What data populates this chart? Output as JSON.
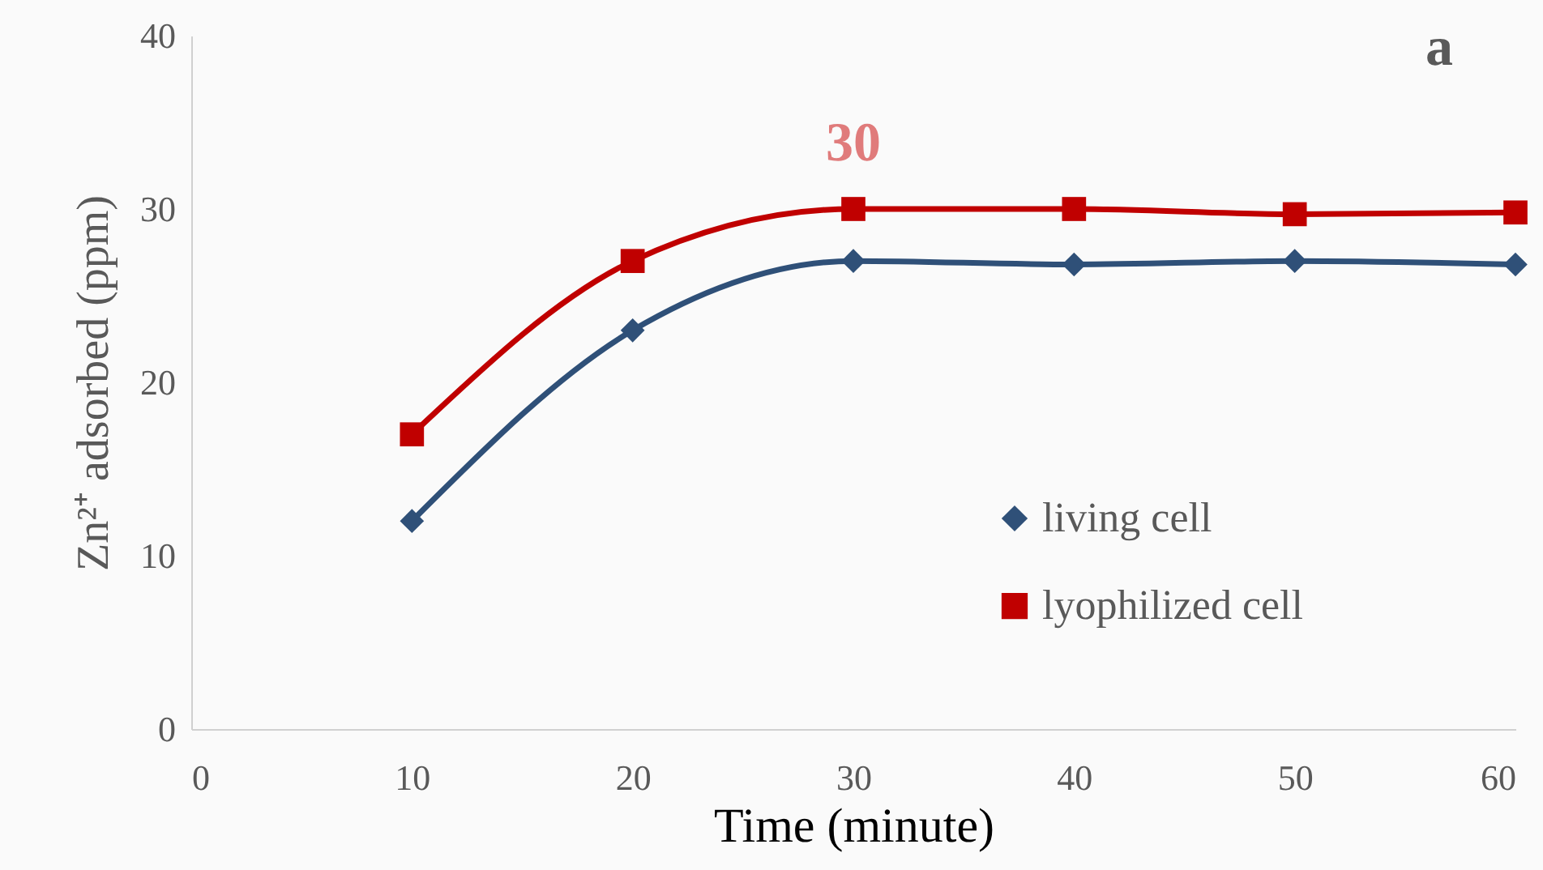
{
  "chart_data": {
    "type": "line",
    "xlabel": "Time (minute)",
    "ylabel": "Zn²⁺ adsorbed (ppm)",
    "x": [
      10,
      20,
      30,
      40,
      50,
      60
    ],
    "series": [
      {
        "name": "living cell",
        "color": "#2f5078",
        "marker": "diamond",
        "values": [
          12,
          23,
          27,
          26.8,
          27,
          26.8
        ]
      },
      {
        "name": "lyophilized cell",
        "color": "#c00000",
        "marker": "square",
        "values": [
          17,
          27,
          30,
          30,
          29.7,
          29.8
        ]
      }
    ],
    "annotations": [
      {
        "text": "30",
        "x": 30,
        "y": 30
      },
      "a"
    ],
    "xlim": [
      0,
      60
    ],
    "xticks": [
      0,
      10,
      20,
      30,
      40,
      50,
      60
    ],
    "ylim": [
      0,
      40
    ],
    "yticks": [
      0,
      10,
      20,
      30,
      40
    ],
    "grid": false,
    "legend": "right",
    "line_style": "solid"
  }
}
